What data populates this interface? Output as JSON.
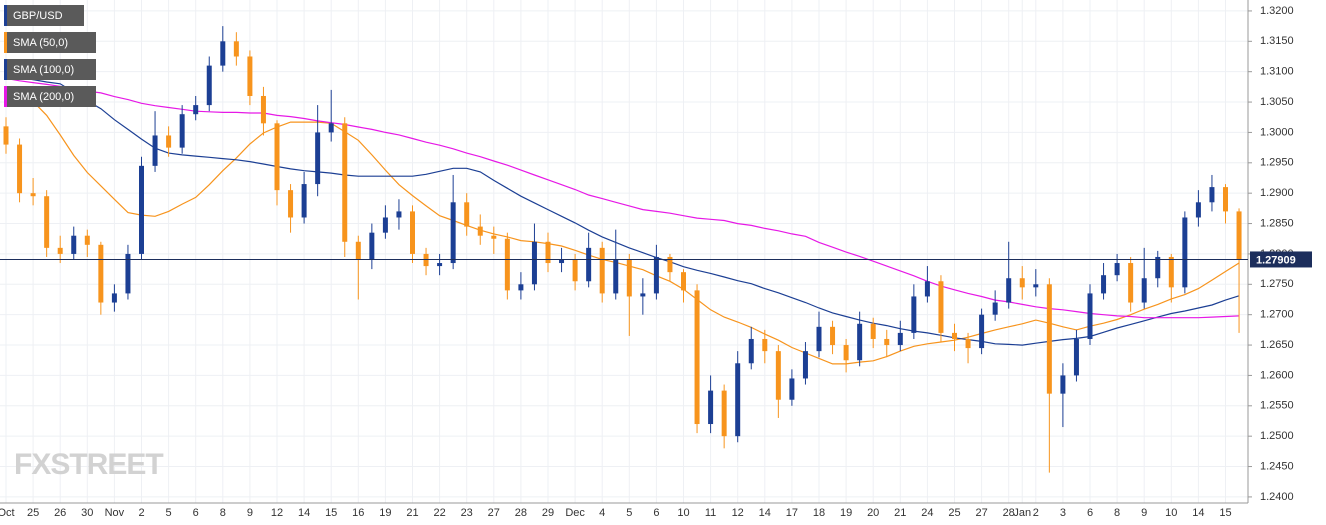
{
  "chart_data": {
    "type": "candlestick",
    "categories": [
      "Oct",
      null,
      "25",
      null,
      "26",
      null,
      "30",
      null,
      "Nov",
      null,
      "2",
      null,
      "5",
      null,
      "6",
      null,
      "8",
      null,
      "9",
      null,
      "12",
      null,
      "14",
      null,
      "15",
      null,
      "16",
      null,
      "19",
      null,
      "21",
      null,
      "22",
      null,
      "23",
      null,
      "27",
      null,
      "28",
      null,
      "29",
      null,
      "Dec",
      null,
      "4",
      null,
      "5",
      null,
      "6",
      null,
      "10",
      null,
      "11",
      null,
      "12",
      null,
      "14",
      null,
      "17",
      null,
      "18",
      null,
      "19",
      null,
      "20",
      null,
      "21",
      null,
      "24",
      null,
      "25",
      null,
      "27",
      null,
      "28",
      "Jan",
      "2",
      null,
      "3",
      null,
      "6",
      null,
      "8",
      null,
      "9",
      null,
      "10",
      null,
      "14",
      null,
      "15",
      null
    ],
    "series": [
      {
        "name": "GBP/USD",
        "type": "candlestick",
        "color": "#1c3f94",
        "up_color": "#1c3f94",
        "down_color": "#f7941d",
        "open": [
          1.301,
          1.298,
          1.29,
          1.2895,
          1.281,
          1.28,
          1.283,
          1.2815,
          1.272,
          1.2735,
          1.28,
          1.2945,
          1.2995,
          1.2975,
          1.303,
          1.3045,
          1.311,
          1.315,
          1.3125,
          1.306,
          1.3015,
          1.2905,
          1.286,
          1.2915,
          1.3,
          1.3015,
          1.282,
          1.279,
          1.2835,
          1.286,
          1.287,
          1.28,
          1.278,
          1.2785,
          1.2885,
          1.2845,
          1.283,
          1.2825,
          1.274,
          1.275,
          1.282,
          1.2785,
          1.279,
          1.2755,
          1.281,
          1.2735,
          1.279,
          1.273,
          1.2735,
          1.2795,
          1.277,
          1.274,
          1.252,
          1.2575,
          1.25,
          1.262,
          1.266,
          1.264,
          1.256,
          1.2595,
          1.264,
          1.268,
          1.265,
          1.2625,
          1.2685,
          1.266,
          1.265,
          1.267,
          1.273,
          1.2755,
          1.267,
          1.266,
          1.2645,
          1.27,
          1.272,
          1.276,
          1.2745,
          1.275,
          1.257,
          1.26,
          1.266,
          1.2735,
          1.2765,
          1.2785,
          1.272,
          1.276,
          1.2795,
          1.2745,
          1.286,
          1.2885,
          1.291,
          1.287
        ],
        "high": [
          1.3025,
          1.299,
          1.2925,
          1.2905,
          1.283,
          1.2845,
          1.284,
          1.282,
          1.275,
          1.2815,
          1.296,
          1.3035,
          1.301,
          1.3045,
          1.306,
          1.3125,
          1.3175,
          1.3165,
          1.3135,
          1.3075,
          1.302,
          1.2915,
          1.2935,
          1.3045,
          1.307,
          1.3025,
          1.283,
          1.285,
          1.288,
          1.289,
          1.288,
          1.281,
          1.28,
          1.293,
          1.29,
          1.2865,
          1.2845,
          1.2835,
          1.277,
          1.285,
          1.2835,
          1.281,
          1.28,
          1.2835,
          1.282,
          1.284,
          1.28,
          1.276,
          1.2815,
          1.28,
          1.2775,
          1.275,
          1.26,
          1.2585,
          1.264,
          1.268,
          1.2675,
          1.265,
          1.261,
          1.2655,
          1.2705,
          1.269,
          1.266,
          1.2705,
          1.2695,
          1.2675,
          1.269,
          1.275,
          1.278,
          1.2765,
          1.2685,
          1.267,
          1.271,
          1.274,
          1.282,
          1.278,
          1.2775,
          1.276,
          1.262,
          1.2675,
          1.275,
          1.2785,
          1.28,
          1.2795,
          1.281,
          1.2805,
          1.28,
          1.287,
          1.2905,
          1.293,
          1.2915,
          1.2875
        ],
        "low": [
          1.2965,
          1.2885,
          1.288,
          1.2795,
          1.2785,
          1.279,
          1.2795,
          1.27,
          1.2705,
          1.2725,
          1.279,
          1.2935,
          1.296,
          1.2965,
          1.302,
          1.3035,
          1.31,
          1.311,
          1.3045,
          1.2995,
          1.288,
          1.2835,
          1.285,
          1.2895,
          1.2985,
          1.2795,
          1.2725,
          1.2775,
          1.2825,
          1.284,
          1.2785,
          1.2765,
          1.2765,
          1.2775,
          1.283,
          1.2815,
          1.28,
          1.2725,
          1.2725,
          1.274,
          1.277,
          1.277,
          1.274,
          1.2745,
          1.272,
          1.2725,
          1.2665,
          1.27,
          1.2725,
          1.2755,
          1.272,
          1.2505,
          1.2505,
          1.248,
          1.249,
          1.261,
          1.262,
          1.253,
          1.255,
          1.2585,
          1.263,
          1.2635,
          1.2605,
          1.2615,
          1.2645,
          1.263,
          1.264,
          1.266,
          1.272,
          1.2655,
          1.264,
          1.262,
          1.2635,
          1.269,
          1.271,
          1.2725,
          1.273,
          1.244,
          1.2515,
          1.259,
          1.265,
          1.2725,
          1.2755,
          1.2705,
          1.271,
          1.2745,
          1.272,
          1.2735,
          1.2845,
          1.287,
          1.285,
          1.267
        ],
        "close": [
          1.298,
          1.29,
          1.2895,
          1.281,
          1.28,
          1.283,
          1.2815,
          1.272,
          1.2735,
          1.28,
          1.2945,
          1.2995,
          1.2975,
          1.303,
          1.3045,
          1.311,
          1.315,
          1.3125,
          1.306,
          1.3015,
          1.2905,
          1.286,
          1.2915,
          1.3,
          1.3015,
          1.282,
          1.279,
          1.2835,
          1.286,
          1.287,
          1.28,
          1.278,
          1.2785,
          1.2885,
          1.2845,
          1.283,
          1.2825,
          1.274,
          1.275,
          1.282,
          1.2785,
          1.279,
          1.2755,
          1.281,
          1.2735,
          1.279,
          1.273,
          1.2735,
          1.2795,
          1.277,
          1.274,
          1.252,
          1.2575,
          1.25,
          1.262,
          1.266,
          1.264,
          1.256,
          1.2595,
          1.264,
          1.268,
          1.265,
          1.2625,
          1.2685,
          1.266,
          1.265,
          1.267,
          1.273,
          1.2755,
          1.267,
          1.266,
          1.2645,
          1.27,
          1.272,
          1.276,
          1.2745,
          1.275,
          1.257,
          1.26,
          1.266,
          1.2735,
          1.2765,
          1.2785,
          1.272,
          1.276,
          1.2795,
          1.2745,
          1.286,
          1.2885,
          1.291,
          1.287,
          1.27909
        ]
      },
      {
        "name": "SMA (50,0)",
        "type": "line",
        "color": "#f7941d",
        "values": [
          1.3073,
          1.3062,
          1.3051,
          1.3028,
          1.2996,
          1.2962,
          1.2934,
          1.2912,
          1.289,
          1.2868,
          1.2864,
          1.2862,
          1.287,
          1.2882,
          1.2893,
          1.2914,
          1.2937,
          1.2958,
          1.2981,
          1.2999,
          1.3009,
          1.3017,
          1.3017,
          1.3017,
          1.3015,
          1.3001,
          1.2987,
          1.2963,
          1.2938,
          1.2914,
          1.2896,
          1.2879,
          1.2863,
          1.2855,
          1.2847,
          1.2839,
          1.2833,
          1.2828,
          1.2822,
          1.282,
          1.2817,
          1.2813,
          1.2806,
          1.2798,
          1.2791,
          1.2786,
          1.278,
          1.2774,
          1.2764,
          1.2755,
          1.2742,
          1.2725,
          1.2708,
          1.2696,
          1.2688,
          1.2679,
          1.2668,
          1.2658,
          1.2646,
          1.2637,
          1.2628,
          1.2619,
          1.2619,
          1.2622,
          1.2624,
          1.2631,
          1.264,
          1.2648,
          1.2652,
          1.2655,
          1.2658,
          1.2663,
          1.2669,
          1.2675,
          1.268,
          1.2685,
          1.2691,
          1.2686,
          1.268,
          1.2675,
          1.2681,
          1.2686,
          1.2692,
          1.27,
          1.2709,
          1.2717,
          1.2726,
          1.2733,
          1.2743,
          1.2757,
          1.2771,
          1.2785
        ]
      },
      {
        "name": "SMA (100,0)",
        "type": "line",
        "color": "#1c3f94",
        "values": [
          1.3094,
          1.309,
          1.3087,
          1.3083,
          1.308,
          1.3066,
          1.3052,
          1.3039,
          1.3021,
          1.3005,
          1.2989,
          1.2974,
          1.2966,
          1.2963,
          1.2961,
          1.2959,
          1.2957,
          1.2955,
          1.2952,
          1.2948,
          1.2944,
          1.294,
          1.2937,
          1.2935,
          1.2933,
          1.293,
          1.2928,
          1.2928,
          1.2928,
          1.2928,
          1.2928,
          1.2931,
          1.2936,
          1.2941,
          1.2941,
          1.2935,
          1.2921,
          1.2908,
          1.2895,
          1.2884,
          1.2873,
          1.2862,
          1.2851,
          1.2839,
          1.2828,
          1.2819,
          1.281,
          1.2802,
          1.2794,
          1.2787,
          1.2779,
          1.2773,
          1.2768,
          1.2762,
          1.2756,
          1.2751,
          1.2743,
          1.2736,
          1.2728,
          1.272,
          1.2711,
          1.2703,
          1.2697,
          1.2691,
          1.2686,
          1.2682,
          1.2677,
          1.2673,
          1.267,
          1.2666,
          1.2662,
          1.2659,
          1.2656,
          1.2652,
          1.2651,
          1.265,
          1.2653,
          1.2656,
          1.2659,
          1.2661,
          1.2664,
          1.2671,
          1.2678,
          1.2684,
          1.269,
          1.2696,
          1.2702,
          1.2706,
          1.2711,
          1.2716,
          1.2724,
          1.2731
        ]
      },
      {
        "name": "SMA (200,0)",
        "type": "line",
        "color": "#e619e6",
        "values": [
          1.3089,
          1.3085,
          1.3082,
          1.3079,
          1.3076,
          1.3072,
          1.3068,
          1.3065,
          1.3059,
          1.3054,
          1.3048,
          1.3044,
          1.3041,
          1.3038,
          1.3035,
          1.3034,
          1.3033,
          1.3033,
          1.3032,
          1.3032,
          1.3028,
          1.3026,
          1.3023,
          1.3019,
          1.3016,
          1.3013,
          1.3009,
          1.3005,
          1.3,
          1.2996,
          1.299,
          1.2984,
          1.2979,
          1.2973,
          1.2966,
          1.296,
          1.2953,
          1.2946,
          1.2938,
          1.293,
          1.2922,
          1.2914,
          1.2906,
          1.2897,
          1.2891,
          1.2885,
          1.2879,
          1.2873,
          1.287,
          1.2867,
          1.2863,
          1.2859,
          1.2857,
          1.2855,
          1.285,
          1.2847,
          1.2842,
          1.2838,
          1.2833,
          1.2829,
          1.2819,
          1.2811,
          1.2803,
          1.2796,
          1.2788,
          1.278,
          1.2772,
          1.2764,
          1.2755,
          1.2747,
          1.2741,
          1.2735,
          1.273,
          1.2724,
          1.2721,
          1.2717,
          1.2713,
          1.271,
          1.2708,
          1.2705,
          1.2702,
          1.27,
          1.2698,
          1.2697,
          1.2695,
          1.2695,
          1.2695,
          1.2695,
          1.2695,
          1.2696,
          1.2697,
          1.2698
        ]
      }
    ],
    "ylim": [
      1.239,
      1.3218
    ],
    "yticks": [
      {
        "value": 1.24,
        "label": "1.2400"
      },
      {
        "value": 1.245,
        "label": "1.2450"
      },
      {
        "value": 1.25,
        "label": "1.2500"
      },
      {
        "value": 1.255,
        "label": "1.2550"
      },
      {
        "value": 1.26,
        "label": "1.2600"
      },
      {
        "value": 1.265,
        "label": "1.2650"
      },
      {
        "value": 1.27,
        "label": "1.2700"
      },
      {
        "value": 1.275,
        "label": "1.2750"
      },
      {
        "value": 1.28,
        "label": "1.2800"
      },
      {
        "value": 1.285,
        "label": "1.2850"
      },
      {
        "value": 1.29,
        "label": "1.2900"
      },
      {
        "value": 1.295,
        "label": "1.2950"
      },
      {
        "value": 1.3,
        "label": "1.3000"
      },
      {
        "value": 1.305,
        "label": "1.3050"
      },
      {
        "value": 1.31,
        "label": "1.3100"
      },
      {
        "value": 1.315,
        "label": "1.3150"
      },
      {
        "value": 1.32,
        "label": "1.3200"
      }
    ],
    "grid": true,
    "legend": "top-left",
    "last_price": 1.27909,
    "last_price_color": "#1c2e5c",
    "watermark": "FXSTREET"
  }
}
